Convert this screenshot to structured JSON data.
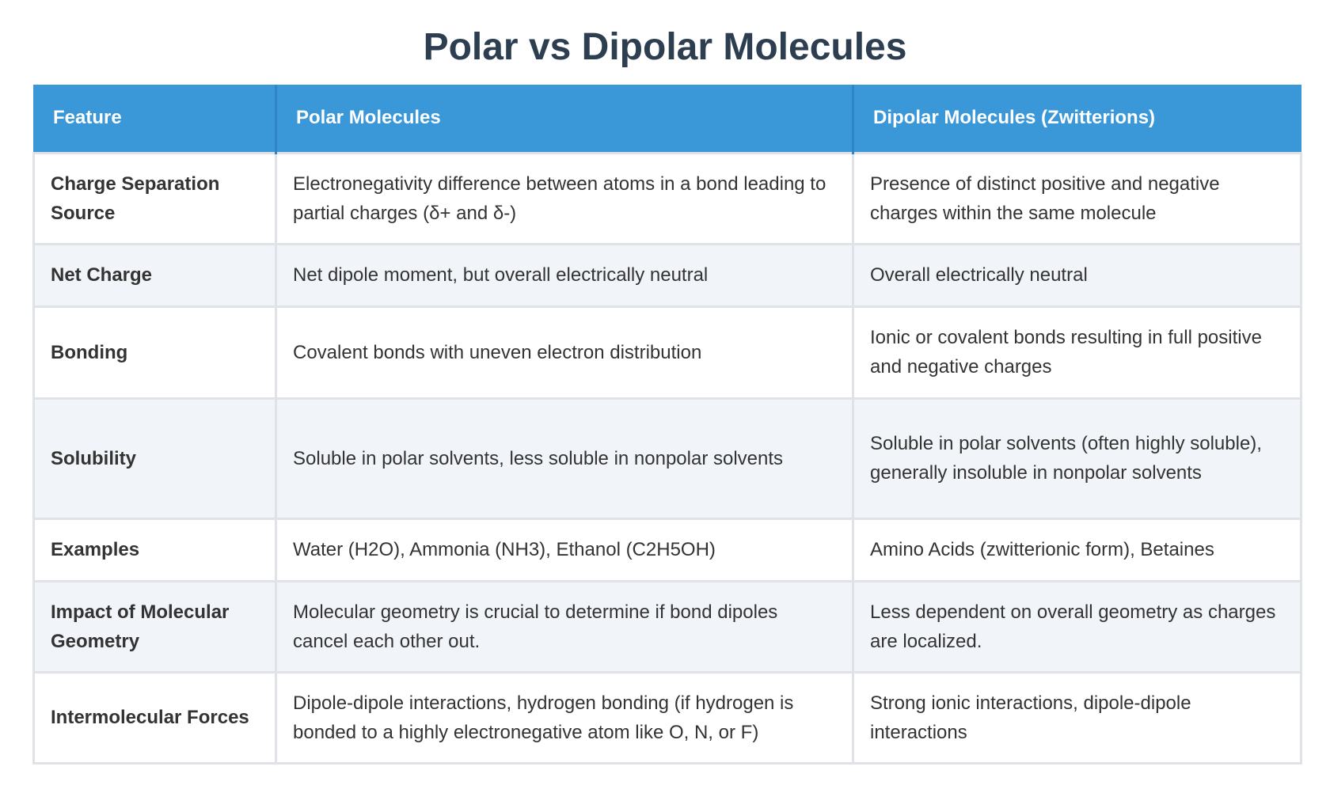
{
  "title": "Polar vs Dipolar Molecules",
  "table": {
    "headers": [
      "Feature",
      "Polar Molecules",
      "Dipolar Molecules (Zwitterions)"
    ],
    "rows": [
      {
        "feature": "Charge Separation Source",
        "polar": "Electronegativity difference between atoms in a bond leading to partial charges (δ+ and δ-)",
        "dipolar": "Presence of distinct positive and negative charges within the same molecule"
      },
      {
        "feature": "Net Charge",
        "polar": "Net dipole moment, but overall electrically neutral",
        "dipolar": "Overall electrically neutral"
      },
      {
        "feature": "Bonding",
        "polar": "Covalent bonds with uneven electron distribution",
        "dipolar": "Ionic or covalent bonds resulting in full positive and negative charges"
      },
      {
        "feature": "Solubility",
        "polar": "Soluble in polar solvents, less soluble in nonpolar solvents",
        "dipolar": "Soluble in polar solvents (often highly soluble), generally insoluble in nonpolar solvents"
      },
      {
        "feature": "Examples",
        "polar": "Water (H2O), Ammonia (NH3), Ethanol (C2H5OH)",
        "dipolar": "Amino Acids (zwitterionic form), Betaines"
      },
      {
        "feature": "Impact of Molecular Geometry",
        "polar": "Molecular geometry is crucial to determine if bond dipoles cancel each other out.",
        "dipolar": "Less dependent on overall geometry as charges are localized."
      },
      {
        "feature": "Intermolecular Forces",
        "polar": "Dipole-dipole interactions, hydrogen bonding (if hydrogen is bonded to a highly electronegative atom like O, N, or F)",
        "dipolar": "Strong ionic interactions, dipole-dipole interactions"
      }
    ]
  },
  "colors": {
    "title": "#2c3e50",
    "header_bg": "#3a98d8",
    "header_text": "#ffffff",
    "row_alt_bg": "#f1f4f8",
    "border": "#dfe3e7"
  }
}
